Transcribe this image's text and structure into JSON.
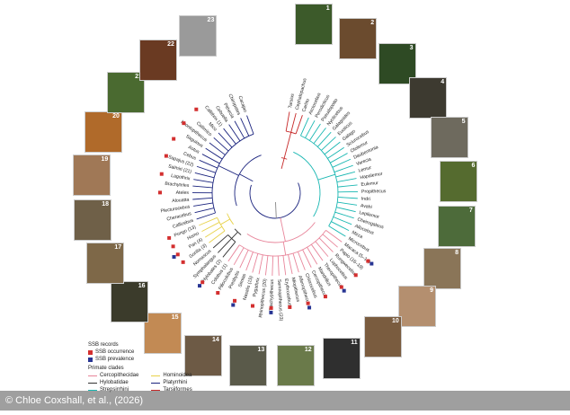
{
  "credit": "© Chloe Coxshall, et al., (2026)",
  "legend": {
    "title": "SSB records",
    "occurrence": "SSB occurrence",
    "prevalence": "SSB prevalence",
    "clades_title": "Primate clades",
    "clades": [
      {
        "name": "Cercopithecidae",
        "color": "#e8859a"
      },
      {
        "name": "Hominoidea",
        "color": "#e8d24a"
      },
      {
        "name": "Hylobatidae",
        "color": "#333333"
      },
      {
        "name": "Platyrrhini",
        "color": "#1a237e"
      },
      {
        "name": "Strepsirrhini",
        "color": "#19b7b2"
      },
      {
        "name": "Tarsiiformes",
        "color": "#c62828"
      }
    ]
  },
  "colors": {
    "occurrence": "#d32f2f",
    "prevalence": "#283593"
  },
  "photos": [
    {
      "num": "1"
    },
    {
      "num": "2"
    },
    {
      "num": "3"
    },
    {
      "num": "4"
    },
    {
      "num": "5"
    },
    {
      "num": "6"
    },
    {
      "num": "7"
    },
    {
      "num": "8"
    },
    {
      "num": "9"
    },
    {
      "num": "10"
    },
    {
      "num": "11"
    },
    {
      "num": "12"
    },
    {
      "num": "13"
    },
    {
      "num": "14"
    },
    {
      "num": "15"
    },
    {
      "num": "16"
    },
    {
      "num": "17"
    },
    {
      "num": "18"
    },
    {
      "num": "19"
    },
    {
      "num": "20"
    },
    {
      "num": "21"
    },
    {
      "num": "22"
    },
    {
      "num": "23"
    }
  ],
  "taxa": [
    "Tarsius",
    "Cephalopachus",
    "Carlito",
    "Arctocebus",
    "Perodicticus",
    "Pseudopotto",
    "Nycticebus",
    "Galagoides",
    "Euoticus",
    "Galago",
    "Sciurocebus",
    "Otolemur",
    "Daubentonia",
    "Varecia",
    "Lemur",
    "Hapalemur",
    "Eulemur",
    "Propithecus",
    "Indri",
    "Avahi",
    "Lepilemur",
    "Cheirogaleus",
    "Allocebus",
    "Mirza",
    "Microcebus",
    "Macaca (5–14)",
    "Papio (16–19)",
    "Rungwecebus",
    "Lophocebus",
    "Theropithecus",
    "Mandrillus",
    "Cercopithecus",
    "Chlorocebus",
    "Allenopithecus",
    "Miopithecus",
    "Erythrocebus",
    "Semnopithecus (23)",
    "Trachypithecus",
    "Rhinopithecus (20)",
    "Pygathrix",
    "Nasalis (15)",
    "Simias",
    "Presbytis",
    "Piliocolobus",
    "Colobus (1)",
    "Hylobates (2)",
    "Symphalangus",
    "Nomascus",
    "Gorilla (3)",
    "Pan (4)",
    "Homo",
    "Pongo (13)",
    "Callicebus",
    "Cheracebus",
    "Plecturocebus",
    "Alouatta",
    "Ateles",
    "Brachyteles",
    "Lagothrix",
    "Saimiri (21)",
    "Sapajus (22)",
    "Cebus",
    "Aotus",
    "Saguinus",
    "Leontopithecus",
    "Callimico",
    "Mico",
    "Callithrix (1)",
    "Cebuella",
    "Pithecia",
    "Chiropotes",
    "Cacajao"
  ]
}
